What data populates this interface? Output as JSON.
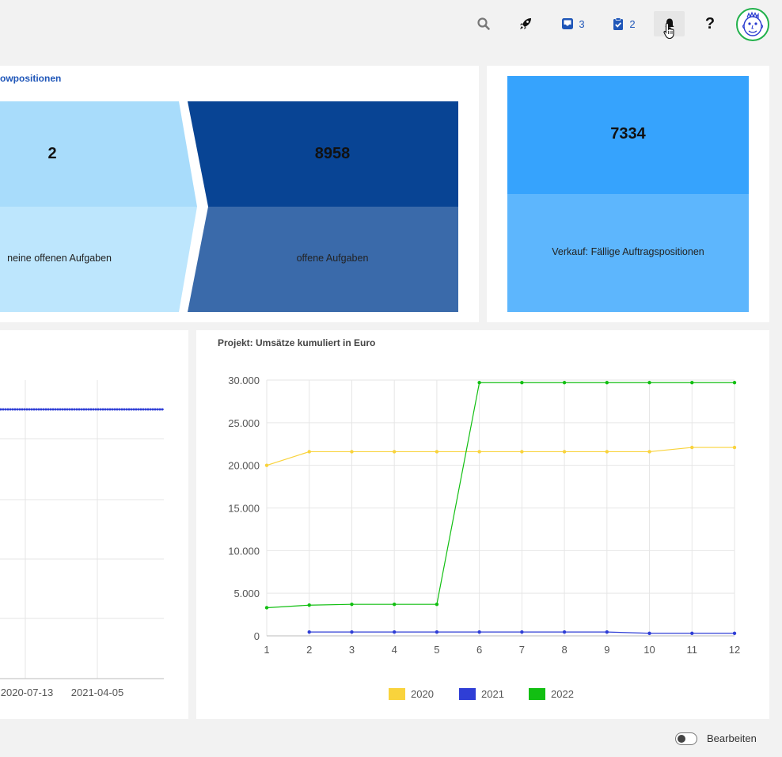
{
  "topbar": {
    "search_icon": "search-icon",
    "rocket_icon": "rocket-icon",
    "inbox": {
      "icon": "inbox-icon",
      "count": "3"
    },
    "tasks": {
      "icon": "clipboard-check-icon",
      "count": "2"
    },
    "bell_icon": "bell-icon",
    "help_label": "?",
    "avatar_icon": "avatar-face-icon",
    "accent": "#1f56b8"
  },
  "workflow_panel": {
    "title": "owpositionen",
    "step1": {
      "value": "2",
      "label": "neine offenen Aufgaben",
      "colors": {
        "top": "#a8dcfb",
        "bottom": "#bde6fd"
      }
    },
    "step2": {
      "value": "8958",
      "label": "offene Aufgaben",
      "colors": {
        "top": "#084494",
        "bottom": "#3a6aaa"
      }
    }
  },
  "sales_panel": {
    "value": "7334",
    "label": "Verkauf: Fällige Auftragspositionen",
    "colors": {
      "top": "#36a3fd",
      "bottom": "#5db6fd"
    }
  },
  "left_chart": {
    "x_tick_labels": [
      "2020-07-13",
      "2021-04-05"
    ],
    "series_color": "#2f3ed6"
  },
  "chart": {
    "title": "Projekt: Umsätze kumuliert in Euro",
    "chart_data": {
      "type": "line",
      "title": "Projekt: Umsätze kumuliert in Euro",
      "x": [
        1,
        2,
        3,
        4,
        5,
        6,
        7,
        8,
        9,
        10,
        11,
        12
      ],
      "x_tick_labels": [
        "1",
        "2",
        "3",
        "4",
        "5",
        "6",
        "7",
        "8",
        "9",
        "10",
        "11",
        "12"
      ],
      "y_tick_labels": [
        "0",
        "5.000",
        "10.000",
        "15.000",
        "20.000",
        "25.000",
        "30.000"
      ],
      "ylim": [
        0,
        30000
      ],
      "grid": true,
      "legend_position": "bottom",
      "series": [
        {
          "name": "2020",
          "color": "#f9d33c",
          "values": [
            20000,
            21600,
            21600,
            21600,
            21600,
            21600,
            21600,
            21600,
            21600,
            21600,
            22100,
            22100
          ]
        },
        {
          "name": "2021",
          "color": "#2f3ed6",
          "values": [
            null,
            450,
            450,
            450,
            450,
            450,
            450,
            450,
            450,
            300,
            300,
            300
          ]
        },
        {
          "name": "2022",
          "color": "#12bf12",
          "values": [
            3300,
            3600,
            3700,
            3700,
            3700,
            29700,
            29700,
            29700,
            29700,
            29700,
            29700,
            29700
          ]
        }
      ]
    }
  },
  "footer": {
    "edit_label": "Bearbeiten"
  }
}
